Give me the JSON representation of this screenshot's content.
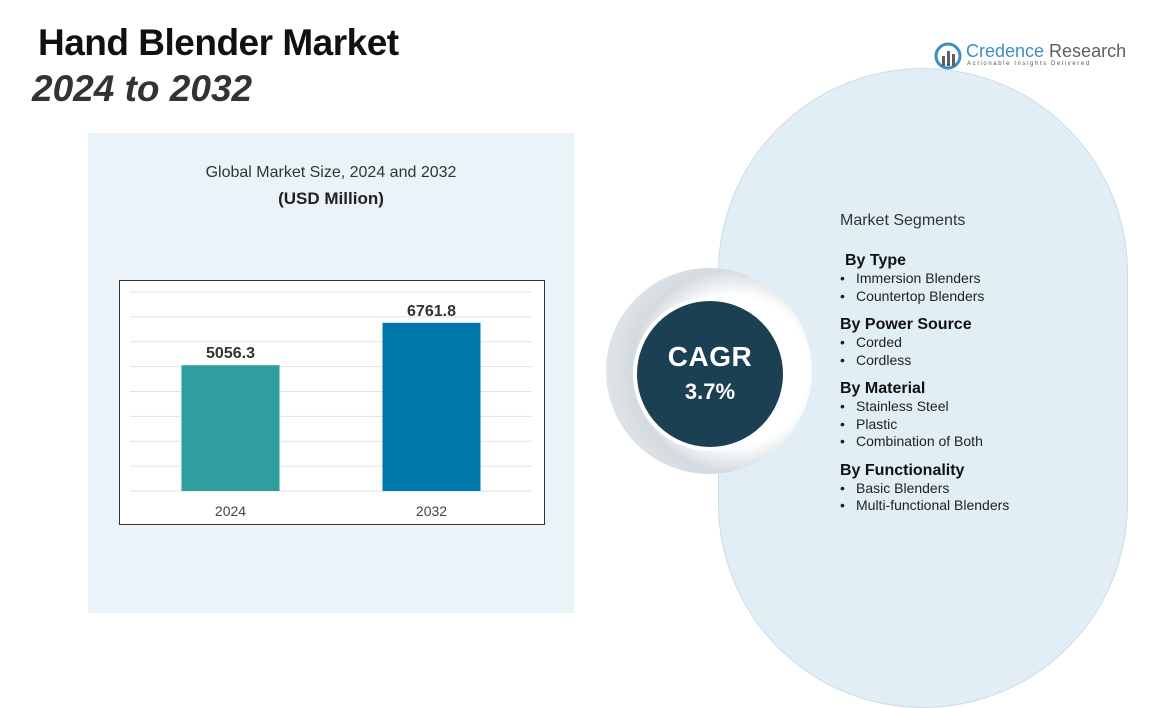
{
  "header": {
    "title": "Hand Blender Market",
    "subtitle": "2024 to 2032"
  },
  "logo": {
    "name_part1": "Credence",
    "name_part2": " Research",
    "tagline": "Actionable Insights Delivered"
  },
  "chart_data": {
    "type": "bar",
    "title": "Global Market Size, 2024 and 2032",
    "unit_label": "(USD Million)",
    "categories": [
      "2024",
      "2032"
    ],
    "values": [
      5056.3,
      6761.8
    ],
    "value_labels": [
      "5056.3",
      "6761.8"
    ],
    "colors": [
      "#2e9e9e",
      "#0077aa"
    ],
    "ylim": [
      0,
      8000
    ],
    "grid": true,
    "xlabel": "",
    "ylabel": ""
  },
  "cagr": {
    "label": "CAGR",
    "value": "3.7%"
  },
  "segments": {
    "title": "Market Segments",
    "groups": [
      {
        "heading": "By Type",
        "items": [
          "Immersion Blenders",
          "Countertop Blenders"
        ]
      },
      {
        "heading": "By Power Source",
        "items": [
          "Corded",
          "Cordless"
        ]
      },
      {
        "heading": "By Material",
        "items": [
          "Stainless Steel",
          "Plastic",
          "Combination of Both"
        ]
      },
      {
        "heading": "By Functionality",
        "items": [
          "Basic Blenders",
          "Multi-functional Blenders"
        ]
      }
    ]
  }
}
